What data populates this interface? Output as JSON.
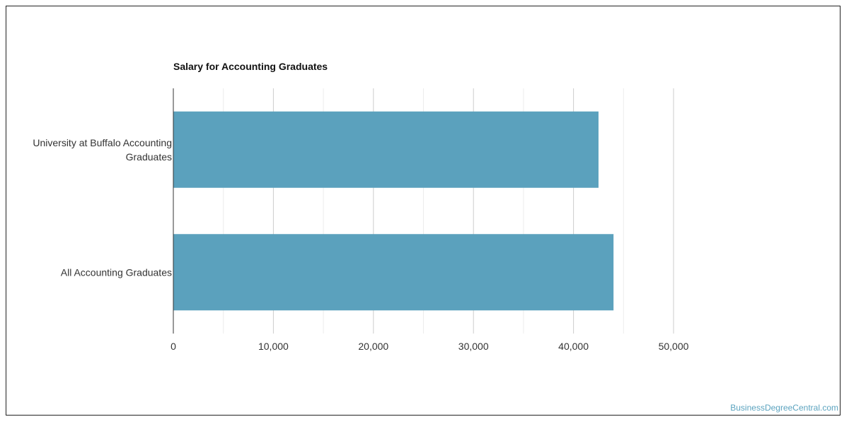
{
  "chart_data": {
    "type": "bar",
    "orientation": "horizontal",
    "title": "Salary for Accounting Graduates",
    "categories": [
      [
        "University at Buffalo Accounting",
        "Graduates"
      ],
      [
        "All Accounting Graduates"
      ]
    ],
    "values": [
      42500,
      44000
    ],
    "xlim": [
      0,
      50000
    ],
    "ticks": [
      "0",
      "10,000",
      "20,000",
      "30,000",
      "40,000",
      "50,000"
    ],
    "tick_values": [
      0,
      10000,
      20000,
      30000,
      40000,
      50000
    ],
    "minor_grid_values": [
      5000,
      15000,
      25000,
      35000,
      45000
    ],
    "grid": true,
    "bar_color": "#5ba1bd",
    "xlabel": "",
    "ylabel": ""
  },
  "watermark": "BusinessDegreeCentral.com"
}
